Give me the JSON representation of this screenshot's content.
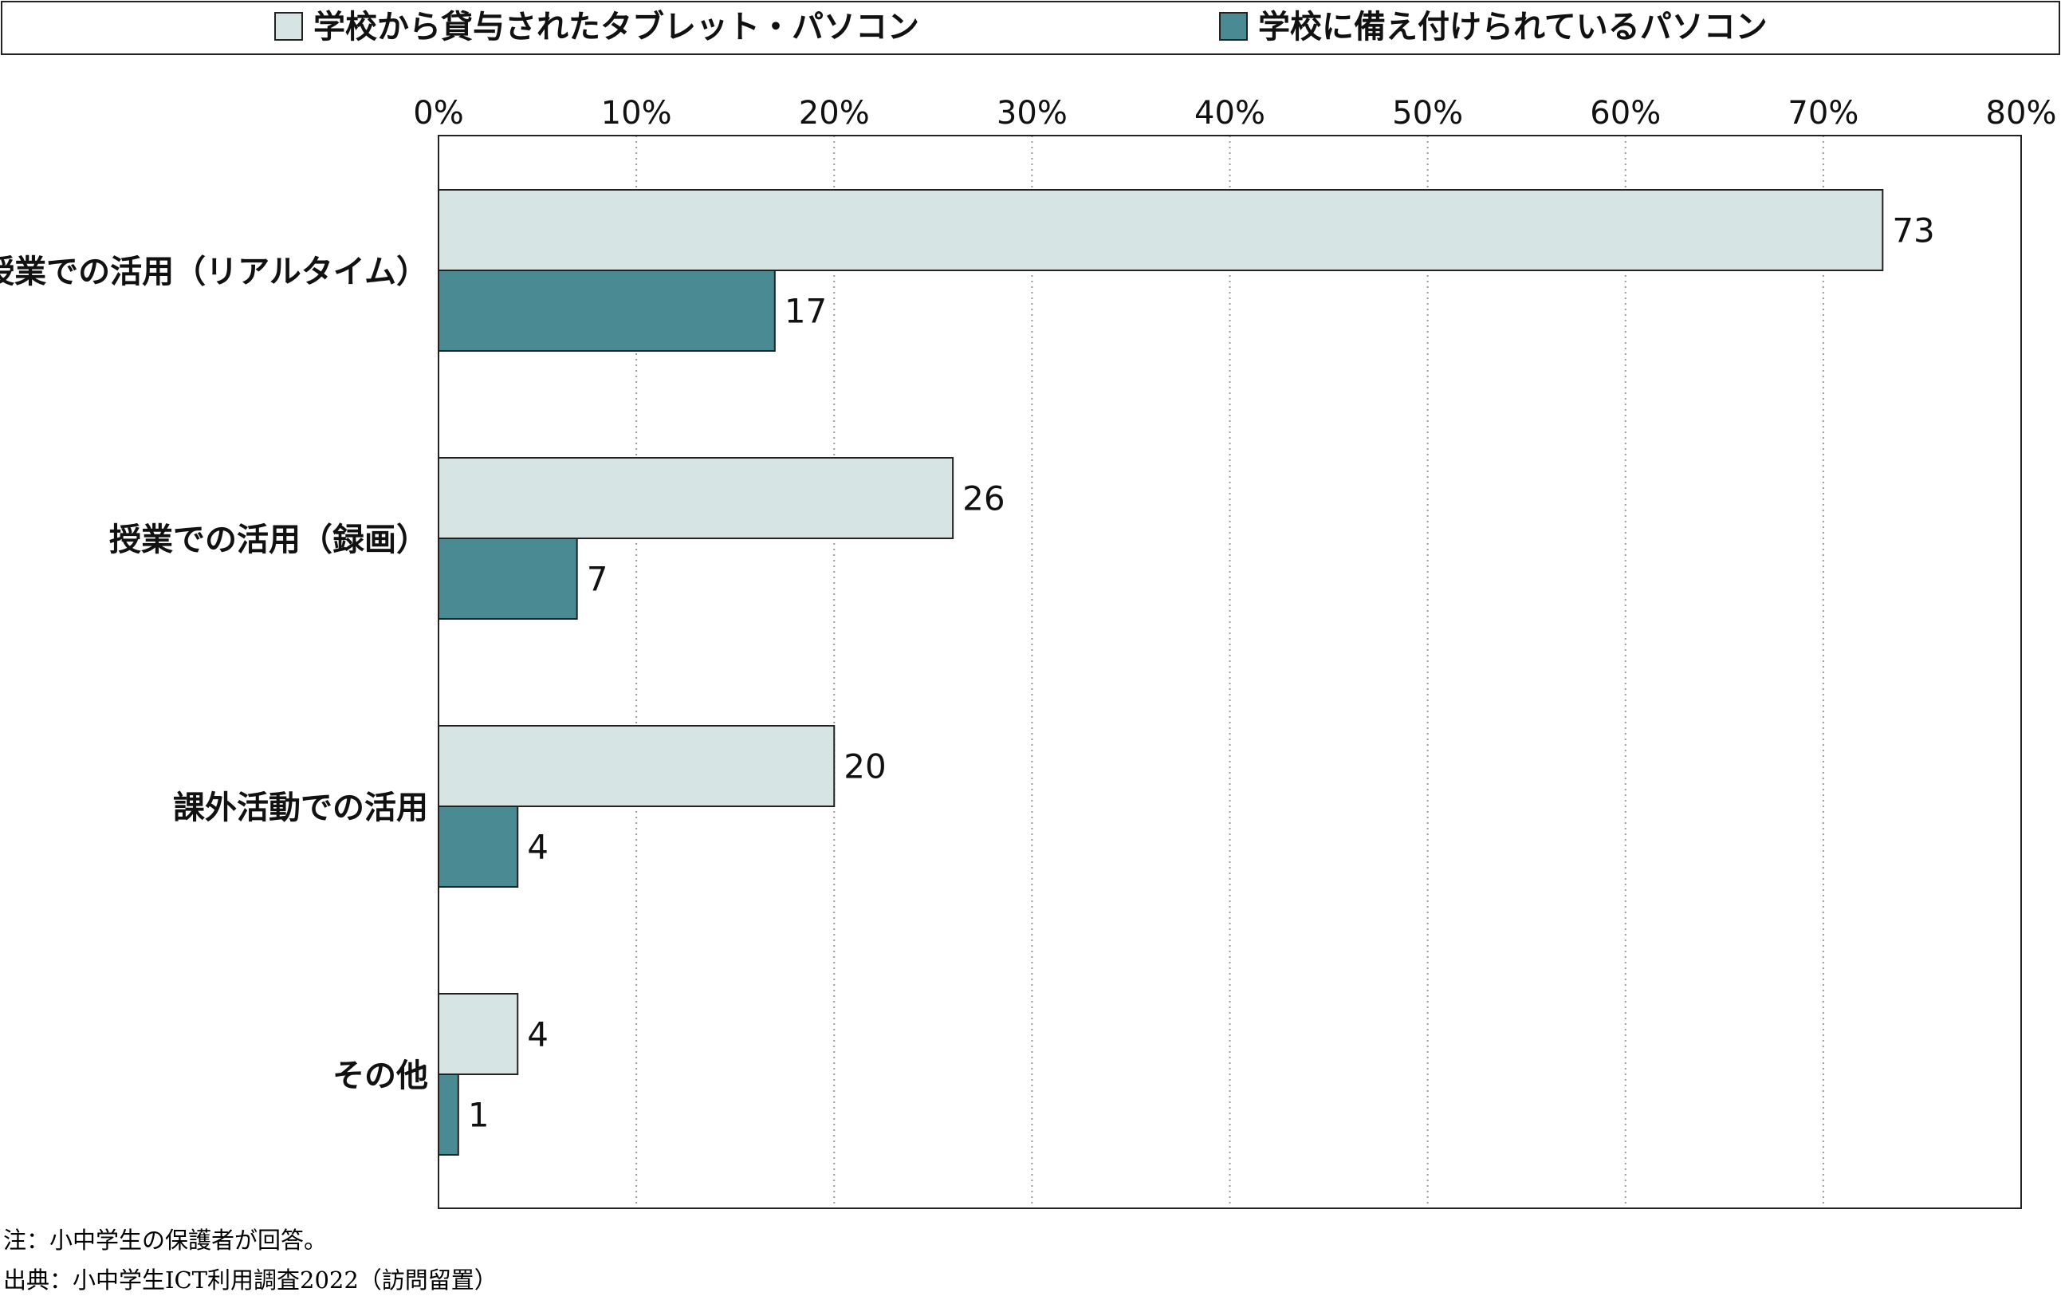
{
  "chart_data": {
    "type": "bar",
    "orientation": "horizontal",
    "categories": [
      "授業での活用（リアルタイム）",
      "授業での活用（録画）",
      "課外活動での活用",
      "その他"
    ],
    "series": [
      {
        "name": "学校から貸与されたタブレット・パソコン",
        "values": [
          73,
          26,
          20,
          4
        ],
        "color": "#d6e4e4"
      },
      {
        "name": "学校に備え付けられているパソコン",
        "values": [
          17,
          7,
          4,
          1
        ],
        "color": "#4a8a92"
      }
    ],
    "xlim": [
      0,
      80
    ],
    "xticks": [
      0,
      10,
      20,
      30,
      40,
      50,
      60,
      70,
      80
    ],
    "xtick_labels": [
      "0%",
      "10%",
      "20%",
      "30%",
      "40%",
      "50%",
      "60%",
      "70%",
      "80%"
    ],
    "x_axis_position": "top",
    "grid": "vertical-dotted",
    "legend_position": "top",
    "show_data_labels": true
  },
  "notes": {
    "note": "注：小中学生の保護者が回答。",
    "source": "出典：小中学生ICT利用調査2022（訪問留置）"
  }
}
